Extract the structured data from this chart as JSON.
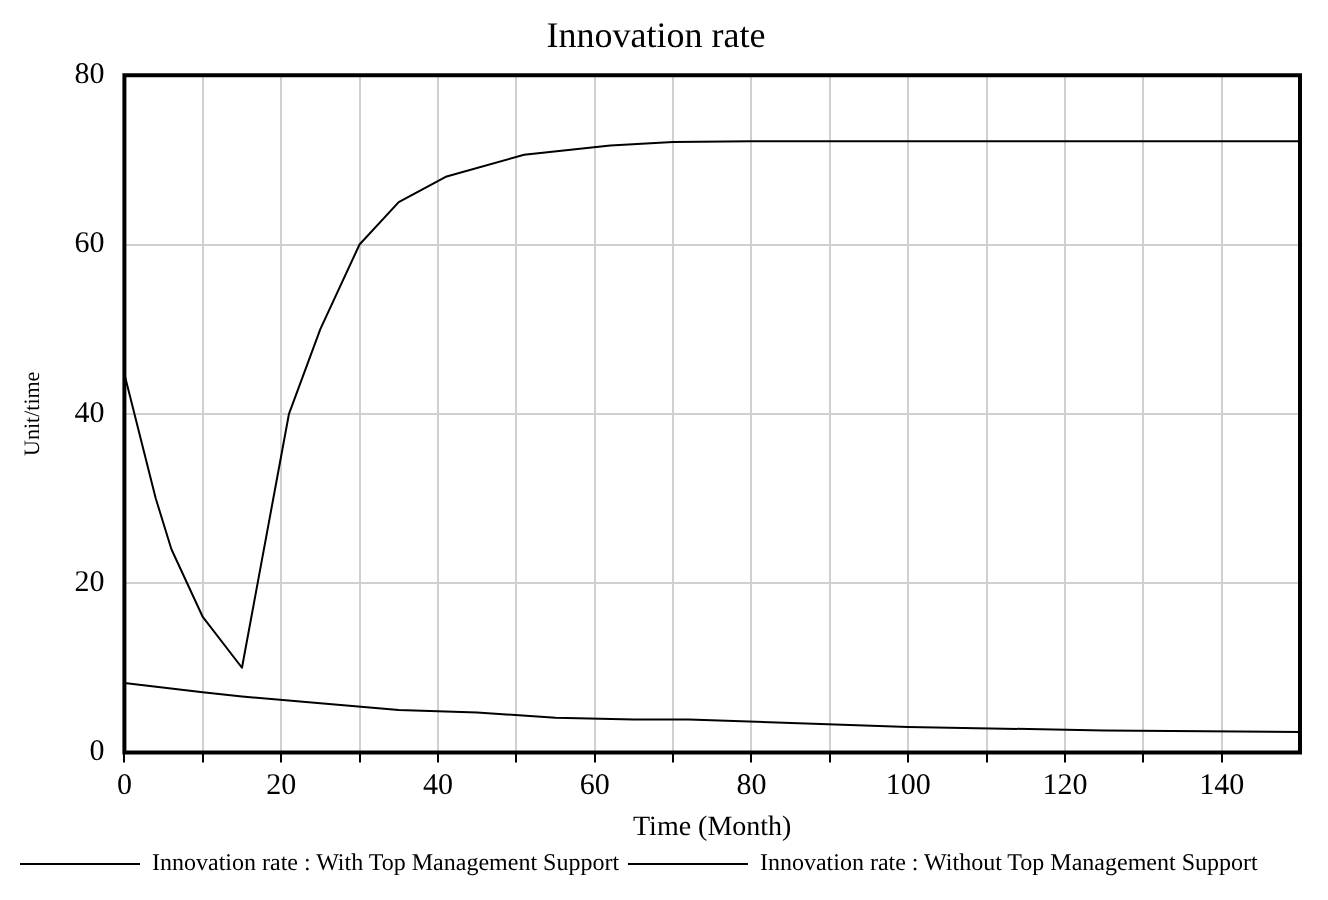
{
  "chart_data": {
    "type": "line",
    "title": "Innovation rate",
    "xlabel": "Time (Month)",
    "ylabel": "Unit/time",
    "xlim": [
      0,
      150
    ],
    "ylim": [
      0,
      80
    ],
    "xticks": [
      0,
      {
        "value": 10,
        "label": null
      },
      20,
      {
        "value": 30,
        "label": null
      },
      40,
      {
        "value": 50,
        "label": null
      },
      60,
      {
        "value": 70,
        "label": null
      },
      80,
      {
        "value": 90,
        "label": null
      },
      100,
      {
        "value": 110,
        "label": null
      },
      120,
      {
        "value": 130,
        "label": null
      },
      140
    ],
    "yticks": [
      0,
      20,
      40,
      60,
      80
    ],
    "grid": true,
    "legend": "bottom",
    "marker": "none",
    "line_style": "solid",
    "series": [
      {
        "name": "Innovation rate : With Top Management Support",
        "color": "#000000",
        "x": [
          0,
          4,
          6,
          10,
          15,
          21,
          25,
          30,
          35,
          41,
          51,
          62,
          70,
          80,
          100,
          120,
          150
        ],
        "values": [
          44.7,
          30,
          24,
          16,
          10,
          40,
          50,
          60,
          65,
          68,
          70.6,
          71.7,
          72.1,
          72.2,
          72.2,
          72.2,
          72.2
        ]
      },
      {
        "name": "Innovation rate : Without Top Management Support",
        "color": "#000000",
        "x": [
          0,
          10,
          15,
          25,
          35,
          45,
          55,
          65,
          72,
          100,
          125,
          150
        ],
        "values": [
          8.2,
          7.1,
          6.6,
          5.8,
          5,
          4.7,
          4.1,
          3.9,
          3.9,
          3,
          2.6,
          2.4
        ]
      }
    ]
  }
}
